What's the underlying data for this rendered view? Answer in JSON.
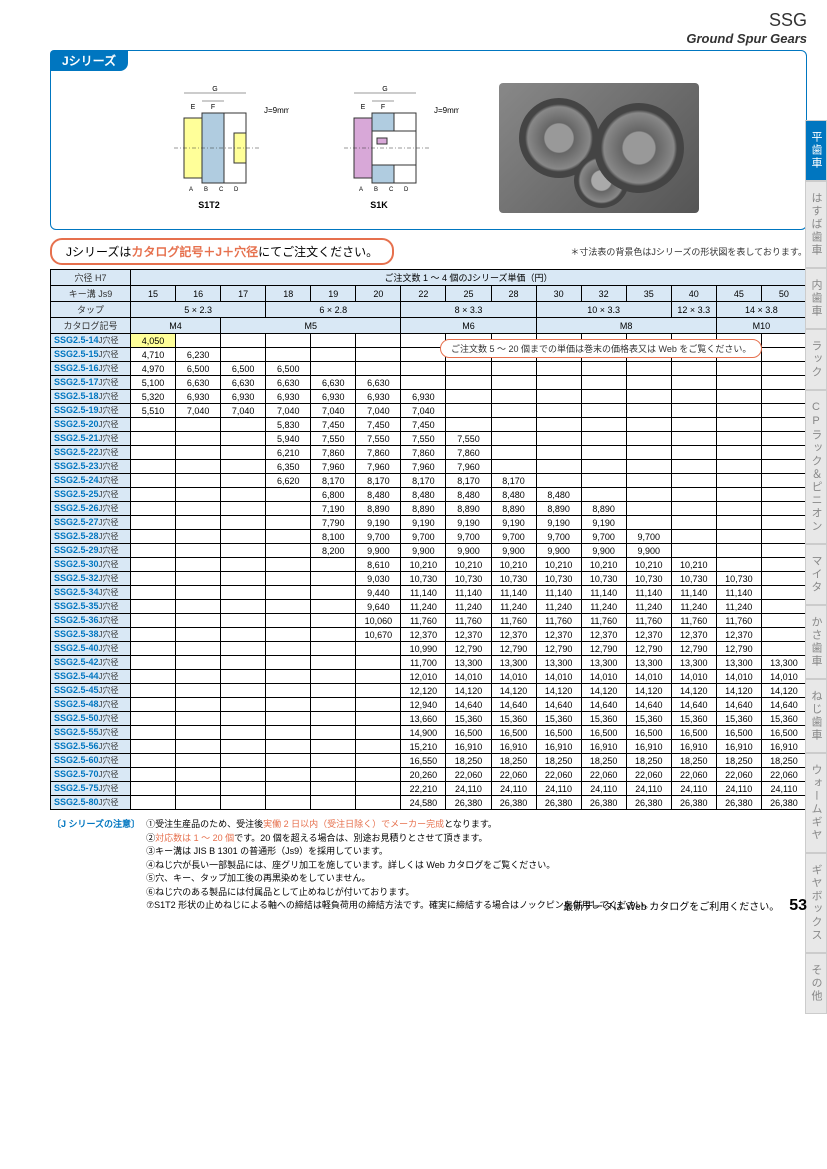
{
  "header": {
    "ssg": "SSG",
    "subtitle": "Ground Spur Gears"
  },
  "inset": {
    "tab": "Jシリーズ",
    "j_dim": "J=9mm",
    "labels": {
      "s1t2": "S1T2",
      "s1k": "S1K",
      "g": "G",
      "e": "E",
      "f": "F",
      "j": "J",
      "a": "A",
      "b": "B",
      "c": "C",
      "d": "D"
    }
  },
  "order_note": {
    "prefix": "Jシリーズは",
    "highlight": "カタログ記号＋J＋穴径",
    "suffix": "にてご注文ください。"
  },
  "dim_note": "＊寸法表の背景色はJシリーズの形状図を表しております。",
  "web_note": "ご注文数 5 ～ 20 個までの単価は巻末の価格表又は Web をご覧ください。",
  "table": {
    "header_left": [
      "穴径 H7",
      "キー溝 Js9",
      "タップ",
      "カタログ記号"
    ],
    "header_title": "ご注文数 1 ～ 4 個のJシリーズ単価（円）",
    "bore_sizes": [
      "15",
      "16",
      "17",
      "18",
      "19",
      "20",
      "22",
      "25",
      "28",
      "30",
      "32",
      "35",
      "40",
      "45",
      "50"
    ],
    "key_groove": [
      {
        "span": 3,
        "val": "5 × 2.3"
      },
      {
        "span": 3,
        "val": "6 × 2.8"
      },
      {
        "span": 3,
        "val": "8 × 3.3"
      },
      {
        "span": 3,
        "val": "10 × 3.3"
      },
      {
        "span": 1,
        "val": "12 × 3.3"
      },
      {
        "span": 2,
        "val": "14 × 3.8"
      }
    ],
    "tap": [
      {
        "span": 2,
        "val": "M4"
      },
      {
        "span": 4,
        "val": "M5"
      },
      {
        "span": 3,
        "val": "M6"
      },
      {
        "span": 4,
        "val": "M8"
      },
      {
        "span": 2,
        "val": "M10"
      }
    ],
    "rows": [
      {
        "label": "SSG2.5-14",
        "cells": [
          {
            "v": "4,050",
            "y": 1
          },
          "",
          "",
          "",
          "",
          "",
          "",
          "",
          "",
          "",
          "",
          "",
          "",
          "",
          ""
        ]
      },
      {
        "label": "SSG2.5-15",
        "cells": [
          "4,710",
          "6,230",
          "",
          "",
          "",
          "",
          "",
          "",
          "",
          "",
          "",
          "",
          "",
          "",
          ""
        ]
      },
      {
        "label": "SSG2.5-16",
        "cells": [
          "4,970",
          "6,500",
          "6,500",
          "6,500",
          "",
          "",
          "",
          "",
          "",
          "",
          "",
          "",
          "",
          "",
          ""
        ]
      },
      {
        "label": "SSG2.5-17",
        "cells": [
          "5,100",
          "6,630",
          "6,630",
          "6,630",
          "6,630",
          "6,630",
          "",
          "",
          "",
          "",
          "",
          "",
          "",
          "",
          ""
        ]
      },
      {
        "label": "SSG2.5-18",
        "cells": [
          "5,320",
          "6,930",
          "6,930",
          "6,930",
          "6,930",
          "6,930",
          "6,930",
          "",
          "",
          "",
          "",
          "",
          "",
          "",
          ""
        ]
      },
      {
        "label": "SSG2.5-19",
        "cells": [
          "5,510",
          "7,040",
          "7,040",
          "7,040",
          "7,040",
          "7,040",
          "7,040",
          "",
          "",
          "",
          "",
          "",
          "",
          "",
          ""
        ]
      },
      {
        "label": "SSG2.5-20",
        "cells": [
          "",
          "",
          "",
          "5,830",
          "7,450",
          "7,450",
          "7,450",
          "",
          "",
          "",
          "",
          "",
          "",
          "",
          ""
        ]
      },
      {
        "label": "SSG2.5-21",
        "cells": [
          "",
          "",
          "",
          "5,940",
          "7,550",
          "7,550",
          "7,550",
          "7,550",
          "",
          "",
          "",
          "",
          "",
          "",
          ""
        ]
      },
      {
        "label": "SSG2.5-22",
        "cells": [
          "",
          "",
          "",
          "6,210",
          "7,860",
          "7,860",
          "7,860",
          "7,860",
          "",
          "",
          "",
          "",
          "",
          "",
          ""
        ]
      },
      {
        "label": "SSG2.5-23",
        "cells": [
          "",
          "",
          "",
          "6,350",
          "7,960",
          "7,960",
          "7,960",
          "7,960",
          "",
          "",
          "",
          "",
          "",
          "",
          ""
        ]
      },
      {
        "label": "SSG2.5-24",
        "cells": [
          "",
          "",
          "",
          "6,620",
          "8,170",
          "8,170",
          "8,170",
          "8,170",
          "8,170",
          "",
          "",
          "",
          "",
          "",
          ""
        ]
      },
      {
        "label": "SSG2.5-25",
        "cells": [
          "",
          "",
          "",
          "",
          "6,800",
          "8,480",
          "8,480",
          "8,480",
          "8,480",
          "8,480",
          "",
          "",
          "",
          "",
          ""
        ]
      },
      {
        "label": "SSG2.5-26",
        "cells": [
          "",
          "",
          "",
          "",
          "7,190",
          "8,890",
          "8,890",
          "8,890",
          "8,890",
          "8,890",
          "8,890",
          "",
          "",
          "",
          ""
        ]
      },
      {
        "label": "SSG2.5-27",
        "cells": [
          "",
          "",
          "",
          "",
          "7,790",
          "9,190",
          "9,190",
          "9,190",
          "9,190",
          "9,190",
          "9,190",
          "",
          "",
          "",
          ""
        ]
      },
      {
        "label": "SSG2.5-28",
        "cells": [
          "",
          "",
          "",
          "",
          "8,100",
          "9,700",
          "9,700",
          "9,700",
          "9,700",
          "9,700",
          "9,700",
          "9,700",
          "",
          "",
          ""
        ]
      },
      {
        "label": "SSG2.5-29",
        "cells": [
          "",
          "",
          "",
          "",
          "8,200",
          "9,900",
          "9,900",
          "9,900",
          "9,900",
          "9,900",
          "9,900",
          "9,900",
          "",
          "",
          ""
        ]
      },
      {
        "label": "SSG2.5-30",
        "cells": [
          "",
          "",
          "",
          "",
          "",
          "8,610",
          "10,210",
          "10,210",
          "10,210",
          "10,210",
          "10,210",
          "10,210",
          "10,210",
          "",
          ""
        ]
      },
      {
        "label": "SSG2.5-32",
        "cells": [
          "",
          "",
          "",
          "",
          "",
          "9,030",
          "10,730",
          "10,730",
          "10,730",
          "10,730",
          "10,730",
          "10,730",
          "10,730",
          "10,730",
          ""
        ]
      },
      {
        "label": "SSG2.5-34",
        "cells": [
          "",
          "",
          "",
          "",
          "",
          "9,440",
          "11,140",
          "11,140",
          "11,140",
          "11,140",
          "11,140",
          "11,140",
          "11,140",
          "11,140",
          ""
        ]
      },
      {
        "label": "SSG2.5-35",
        "cells": [
          "",
          "",
          "",
          "",
          "",
          "9,640",
          "11,240",
          "11,240",
          "11,240",
          "11,240",
          "11,240",
          "11,240",
          "11,240",
          "11,240",
          ""
        ]
      },
      {
        "label": "SSG2.5-36",
        "cells": [
          "",
          "",
          "",
          "",
          "",
          "10,060",
          "11,760",
          "11,760",
          "11,760",
          "11,760",
          "11,760",
          "11,760",
          "11,760",
          "11,760",
          ""
        ]
      },
      {
        "label": "SSG2.5-38",
        "cells": [
          "",
          "",
          "",
          "",
          "",
          "10,670",
          "12,370",
          "12,370",
          "12,370",
          "12,370",
          "12,370",
          "12,370",
          "12,370",
          "12,370",
          ""
        ]
      },
      {
        "label": "SSG2.5-40",
        "cells": [
          "",
          "",
          "",
          "",
          "",
          "",
          "10,990",
          "12,790",
          "12,790",
          "12,790",
          "12,790",
          "12,790",
          "12,790",
          "12,790",
          ""
        ]
      },
      {
        "label": "SSG2.5-42",
        "cells": [
          "",
          "",
          "",
          "",
          "",
          "",
          "11,700",
          "13,300",
          "13,300",
          "13,300",
          "13,300",
          "13,300",
          "13,300",
          "13,300",
          "13,300"
        ]
      },
      {
        "label": "SSG2.5-44",
        "cells": [
          "",
          "",
          "",
          "",
          "",
          "",
          "12,010",
          "14,010",
          "14,010",
          "14,010",
          "14,010",
          "14,010",
          "14,010",
          "14,010",
          "14,010"
        ]
      },
      {
        "label": "SSG2.5-45",
        "cells": [
          "",
          "",
          "",
          "",
          "",
          "",
          "12,120",
          "14,120",
          "14,120",
          "14,120",
          "14,120",
          "14,120",
          "14,120",
          "14,120",
          "14,120"
        ]
      },
      {
        "label": "SSG2.5-48",
        "cells": [
          "",
          "",
          "",
          "",
          "",
          "",
          "12,940",
          "14,640",
          "14,640",
          "14,640",
          "14,640",
          "14,640",
          "14,640",
          "14,640",
          "14,640"
        ]
      },
      {
        "label": "SSG2.5-50",
        "cells": [
          "",
          "",
          "",
          "",
          "",
          "",
          "13,660",
          "15,360",
          "15,360",
          "15,360",
          "15,360",
          "15,360",
          "15,360",
          "15,360",
          "15,360"
        ]
      },
      {
        "label": "SSG2.5-55",
        "cells": [
          "",
          "",
          "",
          "",
          "",
          "",
          "14,900",
          "16,500",
          "16,500",
          "16,500",
          "16,500",
          "16,500",
          "16,500",
          "16,500",
          "16,500"
        ]
      },
      {
        "label": "SSG2.5-56",
        "cells": [
          "",
          "",
          "",
          "",
          "",
          "",
          "15,210",
          "16,910",
          "16,910",
          "16,910",
          "16,910",
          "16,910",
          "16,910",
          "16,910",
          "16,910"
        ]
      },
      {
        "label": "SSG2.5-60",
        "cells": [
          "",
          "",
          "",
          "",
          "",
          "",
          "16,550",
          "18,250",
          "18,250",
          "18,250",
          "18,250",
          "18,250",
          "18,250",
          "18,250",
          "18,250"
        ]
      },
      {
        "label": "SSG2.5-70",
        "cells": [
          "",
          "",
          "",
          "",
          "",
          "",
          "20,260",
          "22,060",
          "22,060",
          "22,060",
          "22,060",
          "22,060",
          "22,060",
          "22,060",
          "22,060"
        ]
      },
      {
        "label": "SSG2.5-75",
        "cells": [
          "",
          "",
          "",
          "",
          "",
          "",
          "22,210",
          "24,110",
          "24,110",
          "24,110",
          "24,110",
          "24,110",
          "24,110",
          "24,110",
          "24,110"
        ]
      },
      {
        "label": "SSG2.5-80",
        "cells": [
          "",
          "",
          "",
          "",
          "",
          "",
          "24,580",
          "26,380",
          "26,380",
          "26,380",
          "26,380",
          "26,380",
          "26,380",
          "26,380",
          "26,380"
        ]
      }
    ],
    "row_suffix": "J穴径"
  },
  "footer_notes": {
    "label": "〔J シリーズの注意〕",
    "items": [
      {
        "n": "①",
        "t": "受注生産品のため、受注後",
        "r": "実働 2 日以内（受注日除く）でメーカー完成",
        "s": "となります。"
      },
      {
        "n": "②",
        "t": "",
        "r": "対応数は 1 ～ 20 個",
        "s": "です。20 個を超える場合は、別途お見積りとさせて頂きます。"
      },
      {
        "n": "③",
        "t": "キー溝は JIS B 1301 の普通形（Js9）を採用しています。",
        "r": "",
        "s": ""
      },
      {
        "n": "④",
        "t": "ねじ穴が長い一部製品には、座グリ加工を施しています。詳しくは Web カタログをご覧ください。",
        "r": "",
        "s": ""
      },
      {
        "n": "⑤",
        "t": "穴、キー、タップ加工後の再黒染めをしていません。",
        "r": "",
        "s": ""
      },
      {
        "n": "⑥",
        "t": "ねじ穴のある製品には付属品として止めねじが付いております。",
        "r": "",
        "s": ""
      },
      {
        "n": "⑦",
        "t": "S1T2 形状の止めねじによる軸への締結は軽負荷用の締結方法です。確実に締結する場合はノックピンを併用してください。",
        "r": "",
        "s": ""
      }
    ]
  },
  "page_footer": {
    "text": "最新データは Web カタログをご利用ください。",
    "num": "53"
  },
  "side_tabs": [
    {
      "label": "平歯車",
      "active": true
    },
    {
      "label": "はすば歯車",
      "active": false
    },
    {
      "label": "内歯車",
      "active": false
    },
    {
      "label": "ラック",
      "active": false
    },
    {
      "label": "CPラック＆ピニオン",
      "active": false
    },
    {
      "label": "マイタ",
      "active": false
    },
    {
      "label": "かさ歯車",
      "active": false
    },
    {
      "label": "ねじ歯車",
      "active": false
    },
    {
      "label": "ウォームギヤ",
      "active": false
    },
    {
      "label": "ギヤボックス",
      "active": false
    },
    {
      "label": "その他",
      "active": false
    }
  ]
}
